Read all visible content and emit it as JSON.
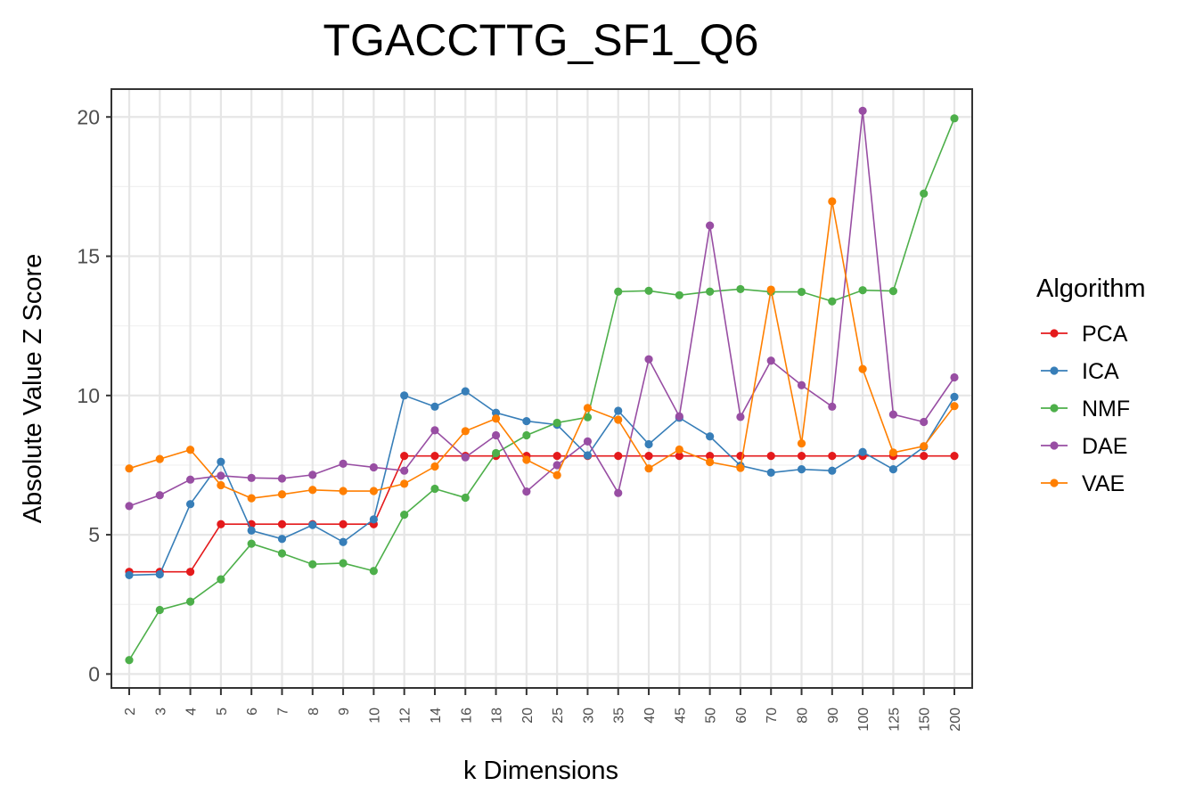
{
  "chart_data": {
    "type": "line",
    "title": "TGACCTTG_SF1_Q6",
    "xlabel": "k Dimensions",
    "ylabel": "Absolute Value Z Score",
    "ylim": [
      -0.5,
      21
    ],
    "yticks": [
      0,
      5,
      10,
      15,
      20
    ],
    "grid": true,
    "legend": {
      "title": "Algorithm",
      "position": "right"
    },
    "categories": [
      "2",
      "3",
      "4",
      "5",
      "6",
      "7",
      "8",
      "9",
      "10",
      "12",
      "14",
      "16",
      "18",
      "20",
      "25",
      "30",
      "35",
      "40",
      "45",
      "50",
      "60",
      "70",
      "80",
      "90",
      "100",
      "125",
      "150",
      "200"
    ],
    "series": [
      {
        "name": "PCA",
        "color": "#E41A1C",
        "values": [
          3.67,
          3.67,
          3.67,
          5.38,
          5.38,
          5.38,
          5.38,
          5.38,
          5.38,
          7.83,
          7.83,
          7.83,
          7.83,
          7.83,
          7.83,
          7.83,
          7.83,
          7.83,
          7.83,
          7.83,
          7.83,
          7.83,
          7.83,
          7.83,
          7.83,
          7.83,
          7.83,
          7.83
        ]
      },
      {
        "name": "ICA",
        "color": "#377EB8",
        "values": [
          3.55,
          3.58,
          6.1,
          7.62,
          5.15,
          4.85,
          5.35,
          4.74,
          5.55,
          10.0,
          9.6,
          10.15,
          9.38,
          9.08,
          8.95,
          7.85,
          9.45,
          8.25,
          9.2,
          8.53,
          7.48,
          7.23,
          7.35,
          7.3,
          7.97,
          7.35,
          8.15,
          9.95
        ]
      },
      {
        "name": "NMF",
        "color": "#4DAF4A",
        "values": [
          0.5,
          2.3,
          2.6,
          3.4,
          4.68,
          4.33,
          3.94,
          3.98,
          3.7,
          5.72,
          6.65,
          6.33,
          7.93,
          8.57,
          9.02,
          9.22,
          13.73,
          13.76,
          13.6,
          13.73,
          13.82,
          13.72,
          13.72,
          13.38,
          13.78,
          13.75,
          17.25,
          19.95
        ]
      },
      {
        "name": "DAE",
        "color": "#984EA3",
        "values": [
          6.03,
          6.42,
          6.98,
          7.12,
          7.04,
          7.02,
          7.15,
          7.55,
          7.42,
          7.3,
          8.75,
          7.78,
          8.57,
          6.55,
          7.5,
          8.35,
          6.5,
          11.3,
          9.25,
          16.1,
          9.23,
          11.25,
          10.37,
          9.6,
          20.22,
          9.32,
          9.05,
          10.65
        ]
      },
      {
        "name": "VAE",
        "color": "#FF7F00",
        "values": [
          7.38,
          7.72,
          8.05,
          6.78,
          6.31,
          6.45,
          6.61,
          6.57,
          6.57,
          6.83,
          7.45,
          8.72,
          9.17,
          7.69,
          7.14,
          9.55,
          9.13,
          7.38,
          8.06,
          7.61,
          7.4,
          13.8,
          8.28,
          16.97,
          10.95,
          7.95,
          8.18,
          9.62
        ]
      }
    ]
  }
}
